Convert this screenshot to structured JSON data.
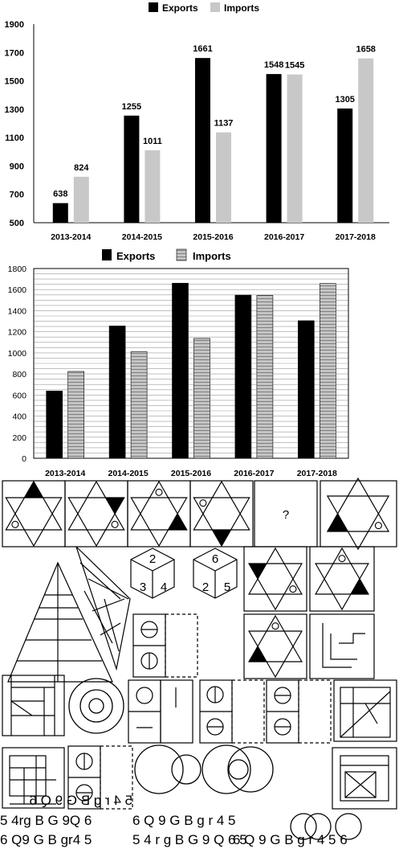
{
  "chart_data": [
    {
      "type": "bar",
      "legend_position": "top",
      "categories": [
        "2013-2014",
        "2014-2015",
        "2015-2016",
        "2016-2017",
        "2017-2018"
      ],
      "series": [
        {
          "name": "Exports",
          "values": [
            638,
            1255,
            1661,
            1548,
            1305
          ],
          "color": "#000000"
        },
        {
          "name": "Imports",
          "values": [
            824,
            1011,
            1137,
            1545,
            1658
          ],
          "color": "#c8c8c8"
        }
      ],
      "ylim": [
        500,
        1900
      ],
      "yticks": [
        "500",
        "700",
        "900",
        "1100",
        "1300",
        "1500",
        "1700",
        "1900"
      ],
      "grid": false,
      "data_labels": true
    },
    {
      "type": "bar",
      "legend_position": "top",
      "categories": [
        "2013-2014",
        "2014-2015",
        "2015-2016",
        "2016-2017",
        "2017-2018"
      ],
      "series": [
        {
          "name": "Exports",
          "values": [
            638,
            1255,
            1661,
            1548,
            1305
          ],
          "color": "#000000"
        },
        {
          "name": "Imports",
          "values": [
            824,
            1011,
            1137,
            1545,
            1658
          ],
          "color": "#bfbfbf",
          "pattern": "horizontal-stripes"
        }
      ],
      "ylim": [
        0,
        1800
      ],
      "yticks": [
        "0",
        "200",
        "400",
        "600",
        "800",
        "1000",
        "1200",
        "1400",
        "1600",
        "1800"
      ],
      "grid": true
    }
  ],
  "puzzle": {
    "question_mark": "?",
    "cube1": {
      "top": "2",
      "left": "3",
      "right": "4"
    },
    "cube2": {
      "top": "6",
      "left": "2",
      "right": "5"
    },
    "mirror_text": {
      "original": "5 4rg B G 9Q 6",
      "reflections": [
        "6 Q9 G B gr4 5",
        "5 4 r g B G 9 Q 6",
        "6 Q 9 G B g r 4 5",
        "5 4 r g B G 9 Q 6 5",
        "6 Q 9 G B g r 4 5 6"
      ]
    }
  }
}
